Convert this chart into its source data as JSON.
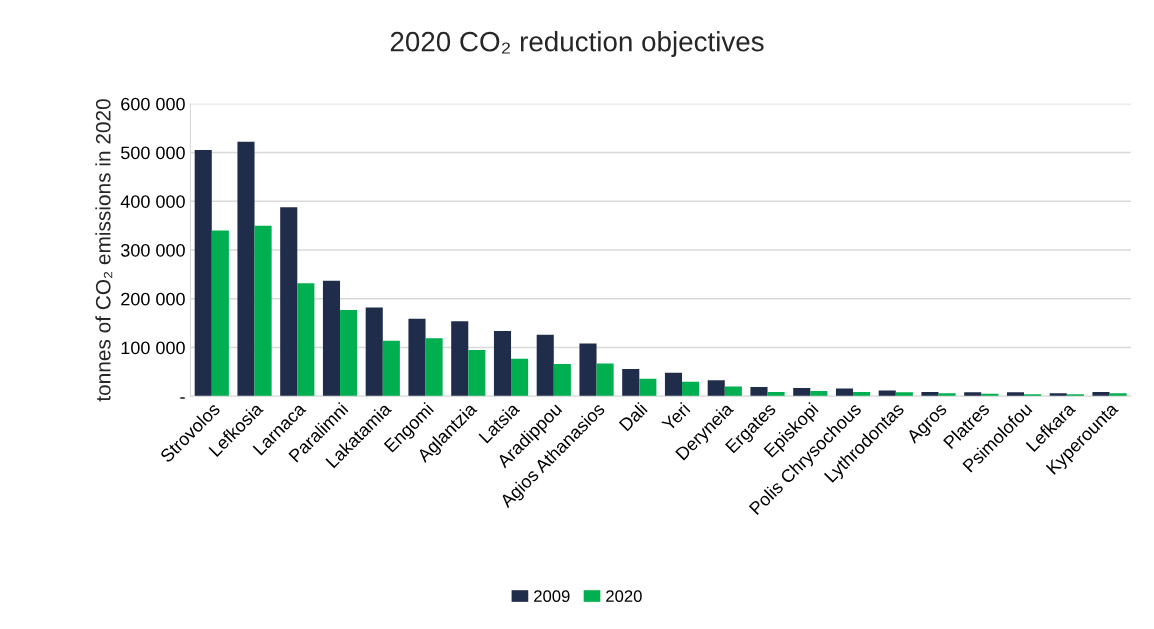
{
  "chart_data": {
    "type": "bar",
    "title": "2020 CO₂ reduction objectives",
    "ylabel": "tonnes of CO₂ emissions in 2020",
    "categories": [
      "Strovolos",
      "Lefkosia",
      "Larnaca",
      "Paralimni",
      "Lakatamia",
      "Engomi",
      "Aglantzia",
      "Latsia",
      "Aradippou",
      "Agios Athanasios",
      "Dali",
      "Yeri",
      "Deryneia",
      "Ergates",
      "Episkopi",
      "Polis Chrysochous",
      "Lythrodontas",
      "Agros",
      "Platres",
      "Psimolofou",
      "Lefkara",
      "Kyperounta"
    ],
    "series": [
      {
        "name": "2009",
        "color": "#1f2d4a",
        "values": [
          505000,
          522000,
          388000,
          237000,
          182000,
          159000,
          154000,
          134000,
          126000,
          108000,
          56000,
          48000,
          33000,
          19000,
          17000,
          16000,
          12000,
          9000,
          8000,
          8000,
          6000,
          9000
        ]
      },
      {
        "name": "2020",
        "color": "#00b050",
        "values": [
          340000,
          350000,
          232000,
          177000,
          114000,
          119000,
          95000,
          77000,
          66000,
          67000,
          36000,
          30000,
          20000,
          9000,
          11000,
          9000,
          8000,
          6000,
          5000,
          4000,
          4000,
          6000
        ]
      }
    ],
    "ylim": [
      0,
      600000
    ],
    "yticks": [
      {
        "value": 0,
        "label": "-"
      },
      {
        "value": 100000,
        "label": "100 000"
      },
      {
        "value": 200000,
        "label": "200 000"
      },
      {
        "value": 300000,
        "label": "300 000"
      },
      {
        "value": 400000,
        "label": "400 000"
      },
      {
        "value": 500000,
        "label": "500 000"
      },
      {
        "value": 600000,
        "label": "600 000"
      }
    ],
    "grid": "y",
    "legend": "bottom"
  }
}
